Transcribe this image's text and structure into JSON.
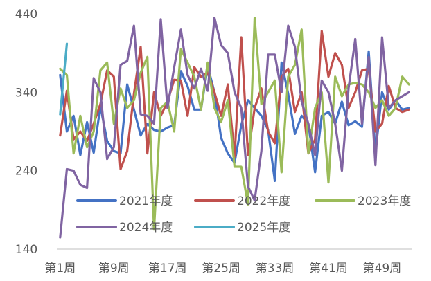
{
  "chart_data": {
    "type": "line",
    "title": "",
    "xlabel": "",
    "ylabel": "",
    "ylim": [
      140,
      440
    ],
    "yticks": [
      140,
      240,
      340,
      440
    ],
    "x_tick_labels": [
      "第1周",
      "第9周",
      "第17周",
      "第25周",
      "第33周",
      "第41周",
      "第49周"
    ],
    "x_tick_weeks": [
      1,
      9,
      17,
      25,
      33,
      41,
      49
    ],
    "weeks": 53,
    "grid": false,
    "legend_position": "bottom-left, inside plot, two rows",
    "series": [
      {
        "name": "2021年度",
        "color": "#4472C4",
        "values": [
          362,
          290,
          310,
          260,
          302,
          263,
          322,
          278,
          265,
          262,
          350,
          318,
          285,
          300,
          292,
          290,
          295,
          298,
          367,
          348,
          318,
          318,
          373,
          340,
          282,
          262,
          250,
          298,
          330,
          320,
          310,
          292,
          227,
          378,
          338,
          287,
          310,
          300,
          238,
          310,
          315,
          300,
          328,
          298,
          303,
          296,
          392,
          263,
          340,
          318,
          330,
          318,
          320
        ]
      },
      {
        "name": "2022年度",
        "color": "#C0504D",
        "values": [
          285,
          342,
          280,
          290,
          278,
          300,
          325,
          368,
          360,
          242,
          265,
          338,
          398,
          262,
          340,
          310,
          328,
          356,
          355,
          310,
          372,
          360,
          365,
          340,
          310,
          350,
          258,
          410,
          260,
          320,
          345,
          290,
          275,
          360,
          370,
          315,
          340,
          262,
          280,
          418,
          360,
          390,
          375,
          320,
          340,
          368,
          370,
          290,
          300,
          348,
          320,
          315,
          318
        ]
      },
      {
        "name": "2023年度",
        "color": "#9BBB59",
        "values": [
          370,
          362,
          262,
          310,
          270,
          290,
          368,
          378,
          300,
          345,
          320,
          330,
          365,
          385,
          165,
          320,
          328,
          290,
          395,
          378,
          360,
          318,
          378,
          320,
          302,
          330,
          245,
          245,
          197,
          435,
          325,
          340,
          355,
          238,
          360,
          375,
          420,
          262,
          320,
          340,
          225,
          360,
          335,
          350,
          352,
          350,
          340,
          320,
          330,
          310,
          320,
          360,
          350
        ]
      },
      {
        "name": "2024年度",
        "color": "#8064A2",
        "values": [
          155,
          242,
          240,
          222,
          218,
          358,
          340,
          255,
          270,
          375,
          380,
          425,
          312,
          310,
          300,
          433,
          320,
          372,
          420,
          362,
          345,
          370,
          342,
          435,
          400,
          390,
          340,
          320,
          220,
          202,
          265,
          388,
          388,
          340,
          425,
          398,
          328,
          300,
          260,
          355,
          340,
          300,
          240,
          345,
          408,
          300,
          385,
          247,
          410,
          320,
          330,
          335,
          340
        ]
      },
      {
        "name": "2025年度",
        "color": "#4BACC6",
        "values": [
          312,
          402
        ]
      }
    ]
  }
}
